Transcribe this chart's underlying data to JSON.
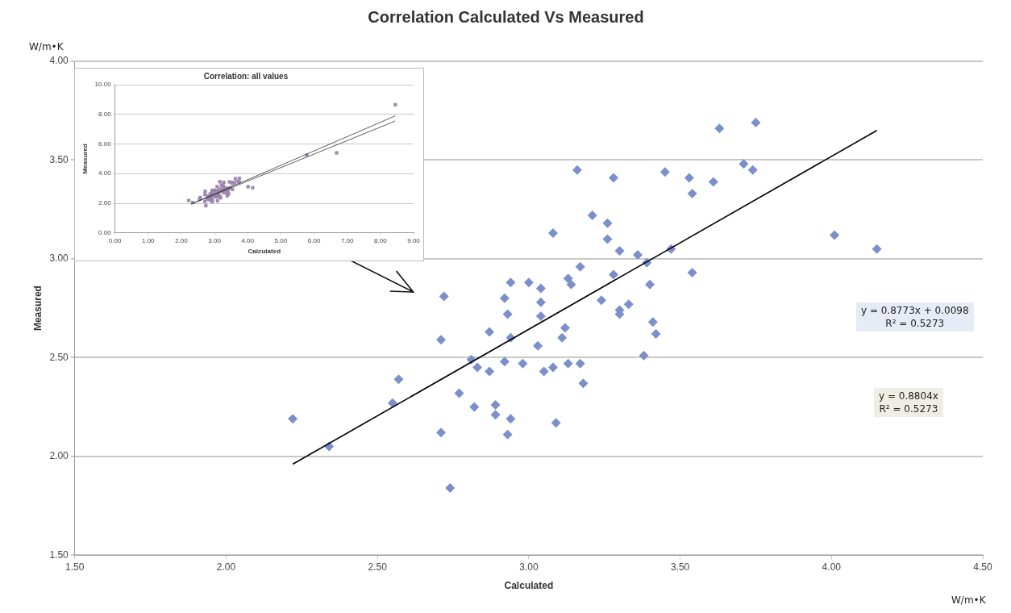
{
  "chart_data": [
    {
      "type": "scatter",
      "title": "Correlation Calculated Vs Measured",
      "xlabel": "Calculated",
      "ylabel": "Measured",
      "xlim": [
        1.5,
        4.5
      ],
      "xticks": [
        {
          "value": 1.5,
          "label": "1.50"
        },
        {
          "value": 2,
          "label": "2.00"
        },
        {
          "value": 2.5,
          "label": "2.50"
        },
        {
          "value": 3,
          "label": "3.00"
        },
        {
          "value": 3.5,
          "label": "3.50"
        },
        {
          "value": 4,
          "label": "4.00"
        },
        {
          "value": 4.5,
          "label": "4.50"
        }
      ],
      "ylim": [
        1.5,
        4
      ],
      "yticks": [
        {
          "value": 1.5,
          "label": "1.50"
        },
        {
          "value": 2,
          "label": "2.00"
        },
        {
          "value": 2.5,
          "label": "2.50"
        },
        {
          "value": 3,
          "label": "3.00"
        },
        {
          "value": 3.5,
          "label": "3.50"
        },
        {
          "value": 4,
          "label": "4.00"
        }
      ],
      "grid": "y",
      "legend": false,
      "annotations": [
        "W/m•K",
        "W/m•K",
        "y = 0.8773x + 0.0098\nR² = 0.5273",
        "y = 0.8804x\nR² = 0.5273"
      ],
      "series": [
        {
          "type": "scatter",
          "marker": "diamond",
          "color": "#7b8fcb",
          "x": [
            2.22,
            2.34,
            2.55,
            2.57,
            2.72,
            2.71,
            2.71,
            2.74,
            2.77,
            2.81,
            2.83,
            2.82,
            2.87,
            2.87,
            2.89,
            2.89,
            2.92,
            2.94,
            2.93,
            2.94,
            2.92,
            2.94,
            2.93,
            2.98,
            3.0,
            3.04,
            3.04,
            3.04,
            3.03,
            3.05,
            3.08,
            3.09,
            3.12,
            3.11,
            3.13,
            3.17,
            3.18,
            3.13,
            3.14,
            3.17,
            3.24,
            3.28,
            3.3,
            3.3,
            3.33,
            3.16,
            3.21,
            3.26,
            3.26,
            3.3,
            3.08,
            3.28,
            3.63,
            3.75,
            3.45,
            3.53,
            3.54,
            3.61,
            3.71,
            3.74,
            3.36,
            3.39,
            3.47,
            3.54,
            4.01,
            4.15,
            3.4,
            3.41,
            3.42,
            3.38
          ],
          "values": [
            2.19,
            2.05,
            2.27,
            2.39,
            2.81,
            2.59,
            2.12,
            1.84,
            2.32,
            2.49,
            2.45,
            2.25,
            2.63,
            2.43,
            2.26,
            2.21,
            2.8,
            2.88,
            2.72,
            2.6,
            2.48,
            2.19,
            2.11,
            2.47,
            2.88,
            2.85,
            2.78,
            2.71,
            2.56,
            2.43,
            2.45,
            2.17,
            2.65,
            2.6,
            2.47,
            2.47,
            2.37,
            2.9,
            2.87,
            2.96,
            2.79,
            2.92,
            2.74,
            2.72,
            2.77,
            3.45,
            3.22,
            3.18,
            3.1,
            3.04,
            3.13,
            3.41,
            3.66,
            3.69,
            3.44,
            3.41,
            3.33,
            3.39,
            3.48,
            3.45,
            3.02,
            2.98,
            3.05,
            2.93,
            3.12,
            3.05,
            2.87,
            2.68,
            2.62,
            2.51
          ]
        },
        {
          "type": "line",
          "color": "#000000",
          "x": [
            2.22,
            4.15
          ],
          "values": [
            1.96,
            3.65
          ]
        }
      ]
    },
    {
      "type": "scatter",
      "title": "Correlation: all values",
      "xlabel": "Calculated",
      "ylabel": "Measured",
      "xlim": [
        0,
        9
      ],
      "xticks": [
        {
          "value": 0,
          "label": "0.00"
        },
        {
          "value": 1,
          "label": "1.00"
        },
        {
          "value": 2,
          "label": "2.00"
        },
        {
          "value": 3,
          "label": "3.00"
        },
        {
          "value": 4,
          "label": "4.00"
        },
        {
          "value": 5,
          "label": "5.00"
        },
        {
          "value": 6,
          "label": "6.00"
        },
        {
          "value": 7,
          "label": "7.00"
        },
        {
          "value": 8,
          "label": "8.00"
        },
        {
          "value": 9,
          "label": "9.00"
        }
      ],
      "ylim": [
        0,
        10
      ],
      "yticks": [
        {
          "value": 0,
          "label": "0.00"
        },
        {
          "value": 2,
          "label": "2.00"
        },
        {
          "value": 4,
          "label": "4.00"
        },
        {
          "value": 6,
          "label": "6.00"
        },
        {
          "value": 8,
          "label": "8.00"
        },
        {
          "value": 10,
          "label": "10.00"
        }
      ],
      "grid": "y",
      "legend": false,
      "series": [
        {
          "type": "scatter",
          "marker": "square",
          "color": "#8a8fcf",
          "x": [
            2.22,
            2.34,
            2.55,
            2.57,
            2.72,
            2.71,
            2.71,
            2.74,
            2.77,
            2.81,
            2.83,
            2.82,
            2.87,
            2.87,
            2.89,
            2.89,
            2.92,
            2.94,
            2.93,
            2.94,
            2.92,
            2.94,
            2.93,
            2.98,
            3.0,
            3.04,
            3.04,
            3.04,
            3.03,
            3.05,
            3.08,
            3.09,
            3.12,
            3.11,
            3.13,
            3.17,
            3.18,
            3.13,
            3.14,
            3.17,
            3.24,
            3.28,
            3.3,
            3.3,
            3.33,
            3.16,
            3.21,
            3.26,
            3.26,
            3.3,
            3.08,
            3.28,
            3.63,
            3.75,
            3.45,
            3.53,
            3.54,
            3.61,
            3.71,
            3.74,
            3.36,
            3.39,
            3.47,
            3.54,
            4.01,
            4.15,
            3.4,
            3.41,
            3.42,
            3.38,
            5.78,
            6.68,
            8.45
          ],
          "values": [
            2.19,
            2.05,
            2.27,
            2.39,
            2.81,
            2.59,
            2.12,
            1.84,
            2.32,
            2.49,
            2.45,
            2.25,
            2.63,
            2.43,
            2.26,
            2.21,
            2.8,
            2.88,
            2.72,
            2.6,
            2.48,
            2.19,
            2.11,
            2.47,
            2.88,
            2.85,
            2.78,
            2.71,
            2.56,
            2.43,
            2.45,
            2.17,
            2.65,
            2.6,
            2.47,
            2.47,
            2.37,
            2.9,
            2.87,
            2.96,
            2.79,
            2.92,
            2.74,
            2.72,
            2.77,
            3.45,
            3.22,
            3.18,
            3.1,
            3.04,
            3.13,
            3.41,
            3.66,
            3.69,
            3.44,
            3.41,
            3.33,
            3.39,
            3.48,
            3.45,
            3.02,
            2.98,
            3.05,
            2.93,
            3.12,
            3.05,
            2.87,
            2.68,
            2.62,
            2.51,
            5.25,
            5.4,
            8.65
          ]
        },
        {
          "type": "line",
          "color": "#333333",
          "x": [
            2.3,
            8.45
          ],
          "values": [
            1.95,
            7.9
          ]
        },
        {
          "type": "line",
          "color": "#333333",
          "x": [
            2.3,
            8.45
          ],
          "values": [
            1.95,
            7.55
          ]
        }
      ]
    }
  ]
}
